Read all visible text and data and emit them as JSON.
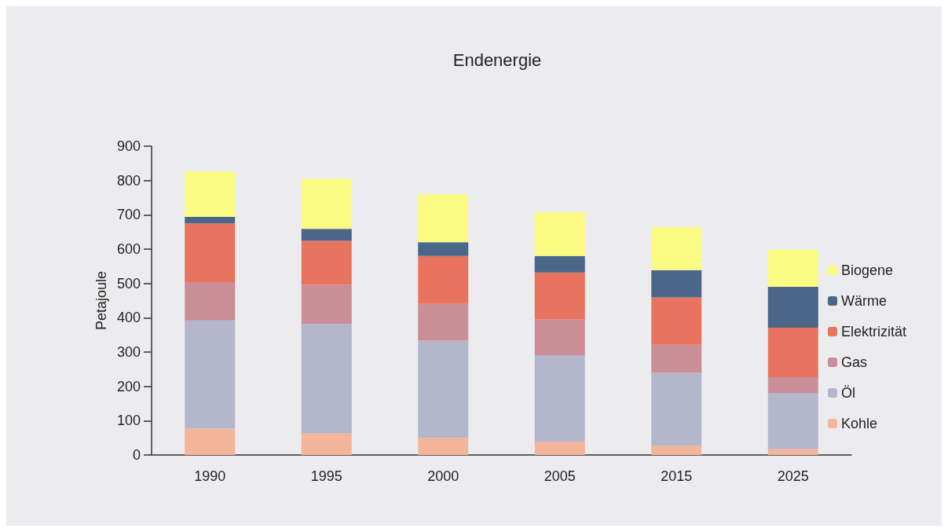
{
  "chart_data": {
    "type": "bar",
    "title": "Endenergie",
    "ylabel": "Petajoule",
    "stacked": true,
    "categories": [
      "1990",
      "1995",
      "2000",
      "2005",
      "2015",
      "2025"
    ],
    "series": [
      {
        "name": "Kohle",
        "color": "#f5b59a",
        "values": [
          77,
          63,
          50,
          39,
          27,
          17
        ]
      },
      {
        "name": "Öl",
        "color": "#b4b6cc",
        "values": [
          315,
          319,
          283,
          252,
          213,
          164
        ]
      },
      {
        "name": "Gas",
        "color": "#c98e97",
        "values": [
          112,
          114,
          107,
          104,
          81,
          46
        ]
      },
      {
        "name": "Elektrizität",
        "color": "#e8735f",
        "values": [
          171,
          128,
          140,
          137,
          138,
          144
        ]
      },
      {
        "name": "Wärme",
        "color": "#4a6688",
        "values": [
          19,
          35,
          40,
          48,
          80,
          119
        ]
      },
      {
        "name": "Biogene",
        "color": "#fbfb84",
        "values": [
          132,
          146,
          140,
          127,
          125,
          108
        ]
      }
    ],
    "ylim": [
      0,
      900
    ],
    "yticks": [
      0,
      100,
      200,
      300,
      400,
      500,
      600,
      700,
      800,
      900
    ],
    "grid": false,
    "legend": "right"
  }
}
